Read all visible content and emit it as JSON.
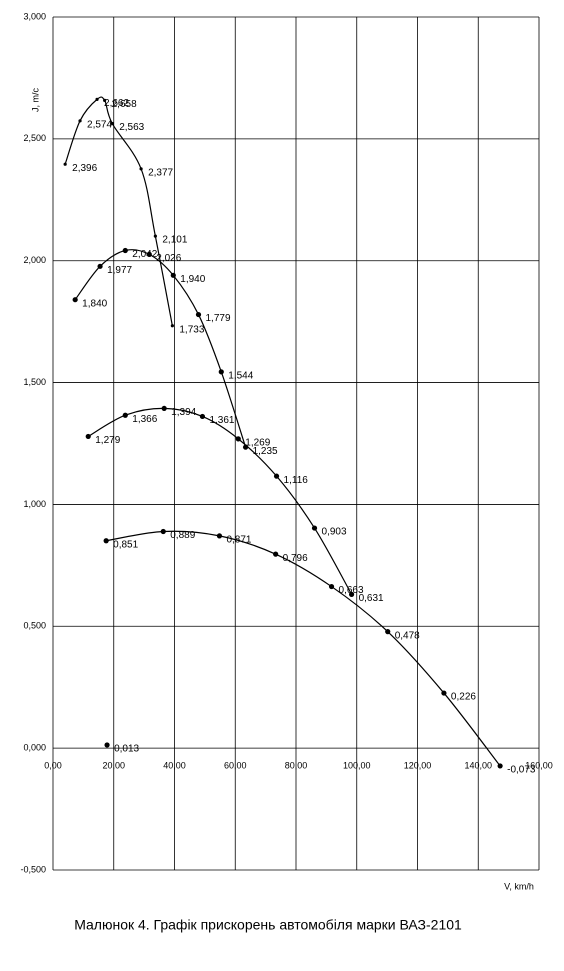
{
  "chart_data": {
    "type": "line",
    "caption": "Малюнок 4. Графік прискорень автомобіля марки ВАЗ-2101",
    "y_label": "J, m/c",
    "x_label": "V, km/h",
    "xlim": [
      0,
      160
    ],
    "xticks": [
      {
        "value": 0,
        "label": "0,00"
      },
      {
        "value": 20,
        "label": "20,00"
      },
      {
        "value": 40,
        "label": "40,00"
      },
      {
        "value": 60,
        "label": "60,00"
      },
      {
        "value": 80,
        "label": "80,00"
      },
      {
        "value": 100,
        "label": "100,00"
      },
      {
        "value": 120,
        "label": "120,00"
      },
      {
        "value": 140,
        "label": "140,00"
      },
      {
        "value": 160,
        "label": "160,00"
      }
    ],
    "ylim": [
      -0.5,
      3.0
    ],
    "yticks": [
      {
        "value": -0.5,
        "label": "-0,500"
      },
      {
        "value": 0,
        "label": "0,000"
      },
      {
        "value": 0.5,
        "label": "0,500"
      },
      {
        "value": 1.0,
        "label": "1,000"
      },
      {
        "value": 1.5,
        "label": "1,500"
      },
      {
        "value": 2.0,
        "label": "2,000"
      },
      {
        "value": 2.5,
        "label": "2,500"
      },
      {
        "value": 3.0,
        "label": "3,000"
      }
    ],
    "grid": true,
    "color": "#000000",
    "series": [
      {
        "x": [
          4,
          8.9,
          14.5,
          17,
          19.5,
          29,
          33.7,
          39.3
        ],
        "values": [
          2.396,
          2.574,
          2.662,
          2.658,
          2.563,
          2.377,
          2.101,
          1.733
        ],
        "value_labels": [
          "2,396",
          "2,574",
          "2,662",
          "2,658",
          "2,563",
          "2,377",
          "2,101",
          "1,733"
        ]
      },
      {
        "x": [
          7.3,
          15.5,
          23.8,
          31.7,
          39.6,
          47.9,
          55.4,
          63.4
        ],
        "values": [
          1.84,
          1.977,
          2.042,
          2.026,
          1.94,
          1.779,
          1.544,
          1.235
        ],
        "value_labels": [
          "1,840",
          "1,977",
          "2,042",
          "2,026",
          "1,940",
          "1,779",
          "1,544",
          "1,235"
        ]
      },
      {
        "x": [
          11.6,
          23.8,
          36.6,
          49.2,
          61,
          73.6,
          86.1,
          98.3
        ],
        "values": [
          1.279,
          1.366,
          1.394,
          1.361,
          1.269,
          1.116,
          0.903,
          0.631
        ],
        "value_labels": [
          "1,279",
          "1,366",
          "1,394",
          "1,361",
          "1,269",
          "1,116",
          "0,903",
          "0,631"
        ]
      },
      {
        "x": [
          17.5,
          36.3,
          54.8,
          73.3,
          91.7,
          110.2,
          128.7,
          147.2
        ],
        "values": [
          0.851,
          0.889,
          0.871,
          0.796,
          0.663,
          0.478,
          0.226,
          -0.073
        ],
        "value_labels": [
          "0,851",
          "0,889",
          "0,871",
          "0,796",
          "0,663",
          "0,478",
          "0,226",
          "-0,073"
        ]
      },
      {
        "x": [
          17.8
        ],
        "values": [
          0.013
        ],
        "value_labels": [
          "0,013"
        ]
      }
    ]
  }
}
